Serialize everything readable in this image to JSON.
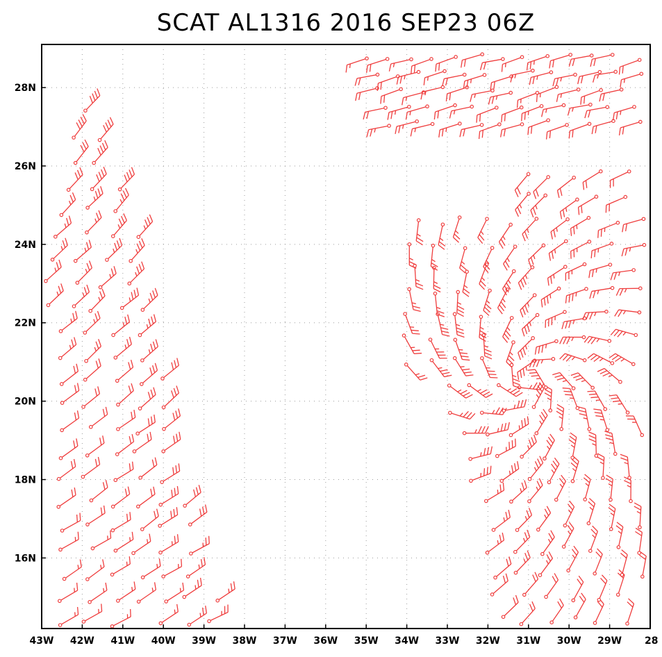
{
  "title": "SCAT AL1316 2016 SEP23 06Z",
  "colors": {
    "barb": "#ef3d3d",
    "frame": "#000000",
    "grid": "#9a9a9a"
  },
  "map": {
    "lon_range": [
      -43,
      -28
    ],
    "lat_range": [
      14.2,
      29.1
    ],
    "x_ticks": [
      {
        "lon": -43,
        "label": "43W"
      },
      {
        "lon": -42,
        "label": "42W"
      },
      {
        "lon": -41,
        "label": "41W"
      },
      {
        "lon": -40,
        "label": "40W"
      },
      {
        "lon": -39,
        "label": "39W"
      },
      {
        "lon": -38,
        "label": "38W"
      },
      {
        "lon": -37,
        "label": "37W"
      },
      {
        "lon": -36,
        "label": "36W"
      },
      {
        "lon": -35,
        "label": "35W"
      },
      {
        "lon": -34,
        "label": "34W"
      },
      {
        "lon": -33,
        "label": "33W"
      },
      {
        "lon": -32,
        "label": "32W"
      },
      {
        "lon": -31,
        "label": "31W"
      },
      {
        "lon": -30,
        "label": "30W"
      },
      {
        "lon": -29,
        "label": "29W"
      },
      {
        "lon": -28,
        "label": "28"
      }
    ],
    "y_ticks": [
      {
        "lat": 16,
        "label": "16N"
      },
      {
        "lat": 18,
        "label": "18N"
      },
      {
        "lat": 20,
        "label": "20N"
      },
      {
        "lat": 22,
        "label": "22N"
      },
      {
        "lat": 24,
        "label": "24N"
      },
      {
        "lat": 26,
        "label": "26N"
      },
      {
        "lat": 28,
        "label": "28N"
      }
    ],
    "grid": true,
    "plot_type": "wind-barbs"
  },
  "chart_data": {
    "type": "scatter",
    "title": "SCAT AL1316 2016 SEP23 06Z",
    "xlim": [
      -43,
      -28
    ],
    "ylim": [
      14.2,
      29.1
    ],
    "swaths": [
      {
        "lon_start": [
          -43.1,
          -42.2,
          -41.5,
          -40.8,
          -40.3,
          -39.7,
          -39.0
        ],
        "note_lat": [
          14.2,
          27.4
        ],
        "speed_kt": [
          15,
          20,
          25,
          30,
          35,
          30,
          25
        ],
        "dir_deg": [
          60,
          55,
          50,
          45,
          40,
          45,
          50
        ]
      },
      {
        "lon_start": [
          -35.1,
          -33.8,
          -32.6,
          -31.4,
          -30.2,
          -29.0
        ],
        "note_lat": [
          27.0,
          28.9
        ],
        "speed_kt": [
          15,
          20,
          20,
          20,
          25,
          25
        ],
        "dir_deg": [
          250,
          255,
          260,
          255,
          250,
          245
        ]
      },
      {
        "lon_start": [
          -34.0,
          -32.8,
          -31.6,
          -30.4,
          -29.2,
          -28.0
        ],
        "note_lat": [
          14.2,
          26.0
        ],
        "speed_kt": [
          20,
          25,
          30,
          35,
          30,
          25
        ],
        "dir_deg": [
          270,
          300,
          320,
          330,
          310,
          280
        ]
      }
    ]
  }
}
